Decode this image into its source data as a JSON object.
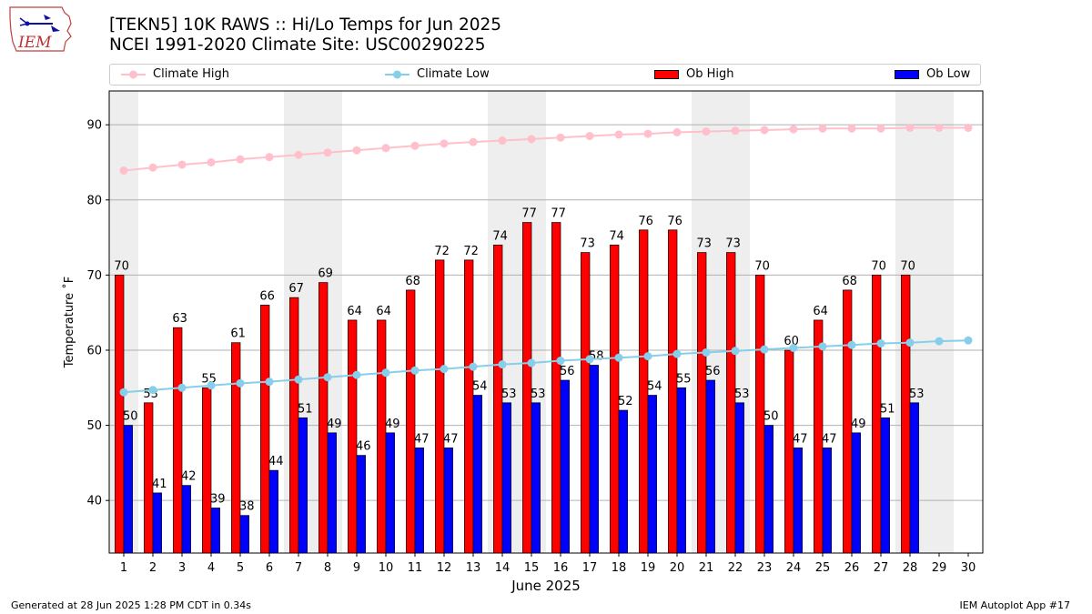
{
  "header": {
    "logo_text": "IEM",
    "title_line1": "[TEKN5] 10K RAWS :: Hi/Lo Temps for Jun 2025",
    "title_line2": "NCEI 1991-2020 Climate Site: USC00290225"
  },
  "legend": {
    "placement": "top, above plot",
    "items": [
      {
        "label": "Climate High",
        "color": "#ffc0cb",
        "kind": "line-marker"
      },
      {
        "label": "Climate Low",
        "color": "#87ceeb",
        "kind": "line-marker"
      },
      {
        "label": "Ob High",
        "color": "#ff0000",
        "kind": "bar"
      },
      {
        "label": "Ob Low",
        "color": "#0000ff",
        "kind": "bar"
      }
    ]
  },
  "chart_data": {
    "type": "bar",
    "xlabel": "June 2025",
    "ylabel": "Temperature ˚F",
    "ylim": [
      33,
      94.5
    ],
    "yticks": [
      40,
      50,
      60,
      70,
      80,
      90
    ],
    "grid": "horizontal",
    "weekend_shading_days": [
      1,
      7,
      8,
      14,
      15,
      21,
      22,
      28,
      29
    ],
    "shade_color": "#eeeeee",
    "categories": [
      "1",
      "2",
      "3",
      "4",
      "5",
      "6",
      "7",
      "8",
      "9",
      "10",
      "11",
      "12",
      "13",
      "14",
      "15",
      "16",
      "17",
      "18",
      "19",
      "20",
      "21",
      "22",
      "23",
      "24",
      "25",
      "26",
      "27",
      "28",
      "29",
      "30"
    ],
    "series": [
      {
        "name": "Ob High",
        "type": "bar",
        "color": "#ff0000",
        "values": [
          70,
          53,
          63,
          55,
          61,
          66,
          67,
          69,
          64,
          64,
          68,
          72,
          72,
          74,
          77,
          77,
          73,
          74,
          76,
          76,
          73,
          73,
          70,
          60,
          64,
          68,
          70,
          70,
          null,
          null
        ]
      },
      {
        "name": "Ob Low",
        "type": "bar",
        "color": "#0000ff",
        "values": [
          50,
          41,
          42,
          39,
          38,
          44,
          51,
          49,
          46,
          49,
          47,
          47,
          54,
          53,
          53,
          56,
          58,
          52,
          54,
          55,
          56,
          53,
          50,
          47,
          47,
          49,
          51,
          53,
          null,
          null
        ]
      },
      {
        "name": "Climate High",
        "type": "line",
        "color": "#ffc0cb",
        "values": [
          83.9,
          84.3,
          84.7,
          85.0,
          85.4,
          85.7,
          86.0,
          86.3,
          86.6,
          86.9,
          87.2,
          87.5,
          87.7,
          87.9,
          88.1,
          88.3,
          88.5,
          88.7,
          88.8,
          89.0,
          89.1,
          89.2,
          89.3,
          89.4,
          89.5,
          89.5,
          89.5,
          89.6,
          89.6,
          89.6
        ]
      },
      {
        "name": "Climate Low",
        "type": "line",
        "color": "#87ceeb",
        "values": [
          54.4,
          54.7,
          55.0,
          55.3,
          55.6,
          55.8,
          56.1,
          56.4,
          56.7,
          57.0,
          57.3,
          57.5,
          57.8,
          58.1,
          58.3,
          58.6,
          58.8,
          59.0,
          59.2,
          59.5,
          59.7,
          59.9,
          60.1,
          60.3,
          60.5,
          60.7,
          60.9,
          61.0,
          61.2,
          61.3
        ]
      }
    ]
  },
  "footer": {
    "left": "Generated at 28 Jun 2025 1:28 PM CDT in 0.34s",
    "right": "IEM Autoplot App #17"
  }
}
